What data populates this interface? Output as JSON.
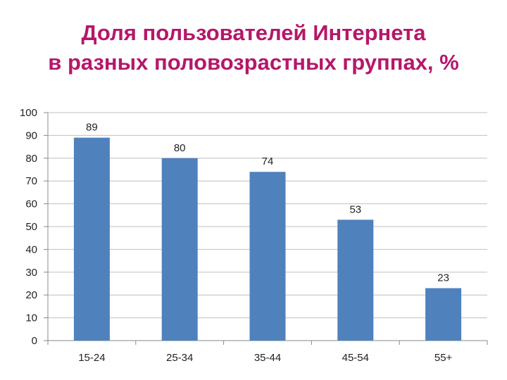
{
  "title_lines": [
    "Доля пользователей Интернета",
    "в разных половозрастных группах, %"
  ],
  "chart_data": {
    "type": "bar",
    "title": "Доля пользователей Интернета в разных половозрастных группах, %",
    "categories": [
      "15-24",
      "25-34",
      "35-44",
      "45-54",
      "55+"
    ],
    "values": [
      89,
      80,
      74,
      53,
      23
    ],
    "data_labels": [
      "89",
      "80",
      "74",
      "53",
      "23"
    ],
    "ylim": [
      0,
      100
    ],
    "yticks": [
      0,
      10,
      20,
      30,
      40,
      50,
      60,
      70,
      80,
      90,
      100
    ],
    "grid": true,
    "legend": "none",
    "bar_color": "#4f81bd",
    "xlabel": "",
    "ylabel": ""
  },
  "colors": {
    "title": "#b5176a",
    "bar": "#4f81bd",
    "grid": "#bfbfbf"
  }
}
